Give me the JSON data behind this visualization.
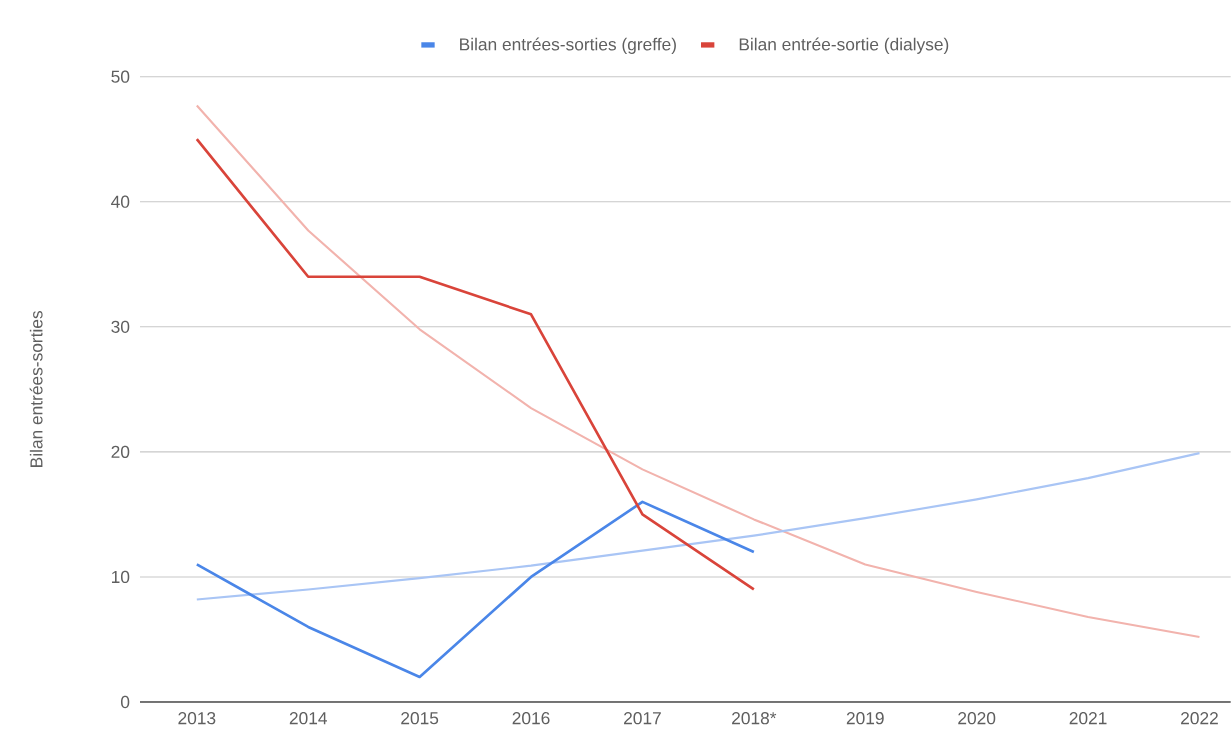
{
  "chart_data": {
    "type": "line",
    "ylabel": "Bilan entrées-sorties",
    "categories": [
      "2013",
      "2014",
      "2015",
      "2016",
      "2017",
      "2018*",
      "2019",
      "2020",
      "2021",
      "2022"
    ],
    "series": [
      {
        "name": "Bilan entrées-sorties (greffe)",
        "color": "#4a86e8",
        "values": [
          11,
          6,
          2,
          10,
          16,
          12,
          null,
          null,
          null,
          null
        ]
      },
      {
        "name": "Bilan entrée-sortie (dialyse)",
        "color": "#d9443a",
        "values": [
          45,
          34,
          34,
          31,
          15,
          9,
          null,
          null,
          null,
          null
        ]
      },
      {
        "type": "line",
        "color": "#f2b3ad",
        "values": [
          47.7,
          37.7,
          29.8,
          23.5,
          18.6,
          14.6,
          11,
          8.8,
          6.8,
          5.2
        ]
      },
      {
        "type": "line",
        "color": "#a9c5f5",
        "values": [
          8.2,
          9,
          9.9,
          10.9,
          12.1,
          13.3,
          14.7,
          16.2,
          17.9,
          19.9
        ]
      }
    ],
    "ylim": [
      0,
      50
    ],
    "yticks": [
      0,
      10,
      20,
      30,
      40,
      50
    ],
    "grid": "y",
    "legend": "top",
    "marker": "none",
    "line_style": "solid"
  }
}
